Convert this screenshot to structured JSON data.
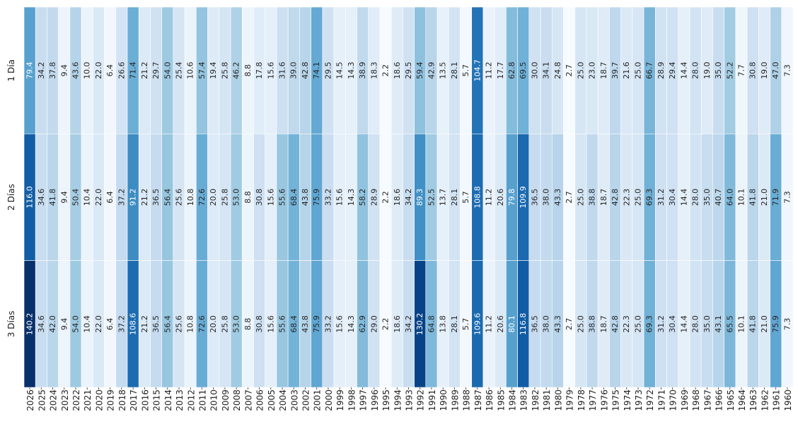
{
  "chart_data": {
    "type": "heatmap",
    "title": "",
    "xlabel": "",
    "ylabel": "",
    "rows": [
      "1 Día",
      "2 Días",
      "3 Días"
    ],
    "columns": [
      "2026",
      "2025",
      "2024",
      "2023",
      "2022",
      "2021",
      "2020",
      "2019",
      "2018",
      "2017",
      "2016",
      "2015",
      "2014",
      "2013",
      "2012",
      "2011",
      "2010",
      "2009",
      "2008",
      "2007",
      "2006",
      "2005",
      "2004",
      "2003",
      "2002",
      "2001",
      "2000",
      "1999",
      "1998",
      "1997",
      "1996",
      "1995",
      "1994",
      "1993",
      "1992",
      "1991",
      "1990",
      "1989",
      "1988",
      "1987",
      "1986",
      "1985",
      "1984",
      "1983",
      "1982",
      "1981",
      "1980",
      "1979",
      "1978",
      "1977",
      "1976",
      "1975",
      "1974",
      "1973",
      "1972",
      "1971",
      "1970",
      "1969",
      "1968",
      "1967",
      "1966",
      "1965",
      "1964",
      "1963",
      "1962",
      "1961",
      "1960"
    ],
    "values": [
      [
        79.4,
        34.2,
        37.8,
        9.4,
        43.6,
        10.0,
        22.0,
        6.4,
        26.6,
        71.4,
        21.2,
        29.7,
        54.0,
        25.4,
        10.6,
        57.4,
        19.4,
        25.8,
        46.2,
        8.8,
        17.8,
        15.6,
        31.6,
        39.0,
        42.8,
        74.1,
        29.5,
        14.5,
        14.3,
        38.9,
        18.3,
        2.2,
        18.6,
        29.5,
        59.4,
        42.9,
        13.5,
        28.1,
        5.7,
        104.7,
        11.2,
        17.7,
        62.8,
        69.5,
        30.0,
        34.1,
        24.8,
        2.7,
        25.0,
        23.0,
        18.7,
        39.7,
        21.6,
        25.0,
        66.7,
        28.9,
        29.4,
        14.4,
        28.0,
        19.0,
        35.0,
        52.2,
        7.7,
        30.8,
        19.0,
        47.0,
        7.3
      ],
      [
        116.0,
        34.6,
        41.8,
        9.4,
        50.4,
        10.4,
        22.0,
        6.4,
        37.2,
        91.2,
        21.2,
        36.5,
        56.4,
        25.6,
        10.8,
        72.6,
        20.0,
        25.8,
        53.0,
        8.8,
        30.8,
        15.6,
        55.6,
        68.4,
        43.8,
        75.9,
        33.2,
        15.6,
        14.3,
        58.2,
        28.9,
        2.2,
        18.6,
        34.2,
        89.3,
        52.5,
        13.7,
        28.1,
        5.7,
        108.8,
        11.2,
        20.6,
        79.8,
        109.9,
        36.5,
        38.0,
        43.3,
        2.7,
        25.0,
        38.8,
        18.7,
        42.8,
        22.3,
        25.0,
        69.3,
        31.2,
        30.4,
        14.4,
        28.0,
        35.0,
        40.7,
        64.0,
        10.1,
        41.8,
        21.0,
        71.9,
        7.3
      ],
      [
        140.2,
        34.6,
        42.0,
        9.4,
        54.0,
        10.4,
        22.0,
        6.4,
        37.2,
        108.6,
        21.2,
        36.5,
        56.4,
        25.6,
        10.8,
        72.6,
        20.0,
        25.8,
        53.0,
        8.8,
        30.8,
        15.6,
        55.6,
        68.4,
        43.8,
        75.9,
        33.2,
        15.6,
        14.3,
        62.9,
        29.0,
        2.2,
        18.6,
        34.2,
        130.2,
        64.8,
        13.8,
        28.1,
        5.7,
        109.6,
        11.2,
        20.6,
        80.1,
        116.8,
        36.5,
        38.0,
        43.3,
        2.7,
        25.0,
        38.8,
        18.7,
        42.8,
        22.3,
        25.0,
        69.3,
        31.2,
        30.4,
        14.4,
        28.0,
        35.0,
        43.1,
        65.5,
        10.1,
        41.8,
        21.0,
        75.9,
        7.3
      ]
    ],
    "value_range": [
      2.2,
      140.2
    ],
    "colormap": "Blues",
    "color_stops": [
      "#f7fbff",
      "#deebf7",
      "#c6dbef",
      "#9ecae1",
      "#6baed6",
      "#4292c6",
      "#2171b5",
      "#08519c",
      "#08306b"
    ],
    "cell_text_dark": "#262626",
    "cell_text_light": "#ffffff",
    "legend": "none",
    "grid": false
  }
}
